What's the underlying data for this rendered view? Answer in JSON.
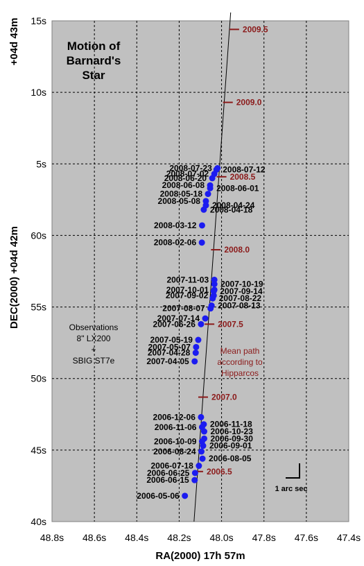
{
  "chart_data": {
    "type": "scatter",
    "title": [
      "Motion of",
      "Barnard's",
      "Star"
    ],
    "xlabel": "RA(2000) 17h 57m",
    "ylabel": "DEC(2000) +04d 42m",
    "y_top_label": "+04d 43m",
    "x_reversed": true,
    "xlim": [
      48.8,
      47.4
    ],
    "ylim": [
      40,
      75
    ],
    "grid": true,
    "x_ticks": [
      {
        "v": 48.8,
        "label": "48.8s"
      },
      {
        "v": 48.6,
        "label": "48.6s"
      },
      {
        "v": 48.4,
        "label": "48.4s"
      },
      {
        "v": 48.2,
        "label": "48.2s"
      },
      {
        "v": 48.0,
        "label": "48.0s"
      },
      {
        "v": 47.8,
        "label": "47.8s"
      },
      {
        "v": 47.6,
        "label": "47.6s"
      },
      {
        "v": 47.4,
        "label": "47.4s"
      }
    ],
    "y_ticks": [
      {
        "v": 40,
        "label": "40s"
      },
      {
        "v": 45,
        "label": "45s"
      },
      {
        "v": 50,
        "label": "50s"
      },
      {
        "v": 55,
        "label": "55s"
      },
      {
        "v": 60,
        "label": "60s"
      },
      {
        "v": 65,
        "label": "5s"
      },
      {
        "v": 70,
        "label": "10s"
      },
      {
        "v": 75,
        "label": "15s"
      }
    ],
    "observations": [
      {
        "date": "2006-05-06",
        "x": 48.173,
        "y": 41.8,
        "side": "left"
      },
      {
        "date": "2006-06-15",
        "x": 48.127,
        "y": 42.9,
        "side": "left"
      },
      {
        "date": "2006-06-25",
        "x": 48.125,
        "y": 43.4,
        "side": "left"
      },
      {
        "date": "2006-07-18",
        "x": 48.107,
        "y": 43.9,
        "side": "left"
      },
      {
        "date": "2006-08-05",
        "x": 48.09,
        "y": 44.4,
        "side": "right"
      },
      {
        "date": "2006-08-24",
        "x": 48.095,
        "y": 44.9,
        "side": "left"
      },
      {
        "date": "2006-09-01",
        "x": 48.087,
        "y": 45.3,
        "side": "right"
      },
      {
        "date": "2006-09-30",
        "x": 48.082,
        "y": 45.8,
        "side": "right"
      },
      {
        "date": "2006-10-09",
        "x": 48.092,
        "y": 45.6,
        "side": "left"
      },
      {
        "date": "2006-10-23",
        "x": 48.082,
        "y": 46.3,
        "side": "right"
      },
      {
        "date": "2006-11-06",
        "x": 48.092,
        "y": 46.6,
        "side": "left"
      },
      {
        "date": "2006-11-18",
        "x": 48.084,
        "y": 46.8,
        "side": "right"
      },
      {
        "date": "2006-12-06",
        "x": 48.097,
        "y": 47.3,
        "side": "left"
      },
      {
        "date": "2007-04-05",
        "x": 48.127,
        "y": 51.2,
        "side": "left"
      },
      {
        "date": "2007-04-28",
        "x": 48.122,
        "y": 51.8,
        "side": "left"
      },
      {
        "date": "2007-05-07",
        "x": 48.12,
        "y": 52.2,
        "side": "left"
      },
      {
        "date": "2007-05-19",
        "x": 48.11,
        "y": 52.7,
        "side": "left"
      },
      {
        "date": "2007-06-26",
        "x": 48.097,
        "y": 53.8,
        "side": "left"
      },
      {
        "date": "2007-07-14",
        "x": 48.077,
        "y": 54.2,
        "side": "left"
      },
      {
        "date": "2007-08-07",
        "x": 48.052,
        "y": 54.9,
        "side": "left"
      },
      {
        "date": "2007-08-13",
        "x": 48.047,
        "y": 55.1,
        "side": "right"
      },
      {
        "date": "2007-08-22",
        "x": 48.042,
        "y": 55.6,
        "side": "right"
      },
      {
        "date": "2007-09-02",
        "x": 48.037,
        "y": 55.8,
        "side": "left"
      },
      {
        "date": "2007-09-14",
        "x": 48.037,
        "y": 56.1,
        "side": "right"
      },
      {
        "date": "2007-10-01",
        "x": 48.034,
        "y": 56.2,
        "side": "left"
      },
      {
        "date": "2007-10-19",
        "x": 48.034,
        "y": 56.6,
        "side": "right"
      },
      {
        "date": "2007-11-03",
        "x": 48.034,
        "y": 56.9,
        "side": "left"
      },
      {
        "date": "2008-02-06",
        "x": 48.093,
        "y": 59.5,
        "side": "left"
      },
      {
        "date": "2008-03-12",
        "x": 48.092,
        "y": 60.7,
        "side": "left"
      },
      {
        "date": "2008-04-18",
        "x": 48.084,
        "y": 61.8,
        "side": "right"
      },
      {
        "date": "2008-04-24",
        "x": 48.074,
        "y": 62.1,
        "side": "right"
      },
      {
        "date": "2008-05-08",
        "x": 48.074,
        "y": 62.4,
        "side": "left"
      },
      {
        "date": "2008-05-18",
        "x": 48.064,
        "y": 62.9,
        "side": "left"
      },
      {
        "date": "2008-06-01",
        "x": 48.054,
        "y": 63.3,
        "side": "right"
      },
      {
        "date": "2008-06-08",
        "x": 48.054,
        "y": 63.5,
        "side": "left"
      },
      {
        "date": "2008-06-20",
        "x": 48.044,
        "y": 64.0,
        "side": "left"
      },
      {
        "date": "2008-07-02",
        "x": 48.034,
        "y": 64.3,
        "side": "left"
      },
      {
        "date": "2008-07-12",
        "x": 48.024,
        "y": 64.6,
        "side": "right"
      },
      {
        "date": "2008-07-23",
        "x": 48.019,
        "y": 64.7,
        "side": "left"
      }
    ],
    "hipparcos_path": {
      "name": "Mean path according to Hipparcos",
      "start": {
        "x": 48.13,
        "y": 40.0
      },
      "end": {
        "x": 47.955,
        "y": 76.0
      },
      "epochs": [
        {
          "label": "2006.5",
          "x": 48.11,
          "y": 43.5
        },
        {
          "label": "2007.0",
          "x": 48.087,
          "y": 48.7
        },
        {
          "label": "2007.5",
          "x": 48.057,
          "y": 53.8
        },
        {
          "label": "2008.0",
          "x": 48.027,
          "y": 59.0
        },
        {
          "label": "2008.5",
          "x": 48.0,
          "y": 64.1
        },
        {
          "label": "2009.0",
          "x": 47.97,
          "y": 69.3
        },
        {
          "label": "2009.5",
          "x": 47.94,
          "y": 74.4
        }
      ]
    },
    "annotations": {
      "observations_note": [
        "Observations",
        "8\" LX200",
        "+",
        "SBIG ST7e"
      ],
      "path_note": [
        "Mean path",
        "according to",
        "Hipparcos"
      ],
      "scale_label": "1 arc sec"
    },
    "colors": {
      "plot_bg": "#c0c0c0",
      "marker": "#1c1cf0",
      "epoch": "#8b1a1a",
      "grid": "#000000"
    }
  }
}
